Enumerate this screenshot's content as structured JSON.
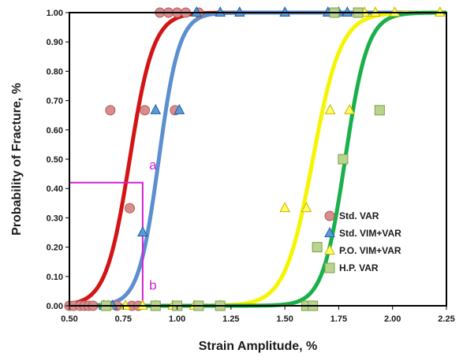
{
  "chart_data": {
    "type": "scatter",
    "xlabel": "Strain Amplitude, %",
    "ylabel": "Probability of Fracture, %",
    "xlim": [
      0.5,
      2.25
    ],
    "ylim": [
      0,
      1
    ],
    "x_ticks": [
      "0.50",
      "0.75",
      "1.00",
      "1.25",
      "1.50",
      "1.75",
      "2.00",
      "2.25"
    ],
    "y_ticks": [
      "0.00",
      "0.10",
      "0.20",
      "0.30",
      "0.40",
      "0.50",
      "0.60",
      "0.70",
      "0.80",
      "0.90",
      "1.00"
    ],
    "grid": false,
    "legend_position": "bottom-right",
    "series": [
      {
        "name": "Std. VAR",
        "marker": "circle",
        "color": "#d98c8c",
        "edge_color": "#b35a5a",
        "points": [
          [
            0.5,
            0
          ],
          [
            0.52,
            0
          ],
          [
            0.55,
            0
          ],
          [
            0.57,
            0
          ],
          [
            0.59,
            0
          ],
          [
            0.61,
            0
          ],
          [
            0.67,
            0
          ],
          [
            0.72,
            0
          ],
          [
            0.79,
            0
          ],
          [
            0.82,
            0
          ],
          [
            0.69,
            0.667
          ],
          [
            0.85,
            0.667
          ],
          [
            0.99,
            0.667
          ],
          [
            0.78,
            0.333
          ],
          [
            0.92,
            1
          ],
          [
            0.96,
            1
          ],
          [
            1.0,
            1
          ],
          [
            1.04,
            1
          ],
          [
            1.1,
            1
          ]
        ]
      },
      {
        "name": "Std. VIM+VAR",
        "marker": "triangle",
        "color": "#5b9bd5",
        "edge_color": "#1f5fa8",
        "points": [
          [
            0.66,
            0
          ],
          [
            0.7,
            0
          ],
          [
            0.84,
            0
          ],
          [
            0.84,
            0.25
          ],
          [
            0.9,
            0.667
          ],
          [
            1.01,
            0.667
          ],
          [
            1.09,
            1
          ],
          [
            1.2,
            1
          ],
          [
            1.29,
            1
          ],
          [
            1.5,
            1
          ],
          [
            1.7,
            1
          ],
          [
            1.75,
            1
          ],
          [
            1.79,
            1
          ]
        ]
      },
      {
        "name": "P.O. VIM+VAR",
        "marker": "triangle",
        "color": "#ffff66",
        "edge_color": "#c8b400",
        "points": [
          [
            0.68,
            0
          ],
          [
            0.76,
            0
          ],
          [
            0.84,
            0
          ],
          [
            0.9,
            0
          ],
          [
            0.98,
            0
          ],
          [
            1.08,
            0
          ],
          [
            1.2,
            0
          ],
          [
            1.5,
            0.333
          ],
          [
            1.6,
            0.333
          ],
          [
            1.71,
            0.667
          ],
          [
            1.8,
            0.667
          ],
          [
            1.87,
            1
          ],
          [
            1.92,
            1
          ],
          [
            2.01,
            1
          ],
          [
            2.22,
            1
          ]
        ]
      },
      {
        "name": "H.P. VAR",
        "marker": "square",
        "color": "#b9d48c",
        "edge_color": "#7a9e4a",
        "points": [
          [
            0.67,
            0
          ],
          [
            0.9,
            0
          ],
          [
            1.0,
            0
          ],
          [
            1.1,
            0
          ],
          [
            1.2,
            0
          ],
          [
            1.6,
            0
          ],
          [
            1.63,
            0
          ],
          [
            1.65,
            0.2
          ],
          [
            1.77,
            0.5
          ],
          [
            1.94,
            0.667
          ],
          [
            1.84,
            1
          ],
          [
            1.73,
            1
          ]
        ]
      }
    ],
    "curves": [
      {
        "series": "Std. VAR",
        "color": "#d41414",
        "mu": 0.78,
        "k": 0.055
      },
      {
        "series": "Std. VIM+VAR",
        "color": "#5b8fd0",
        "mu": 0.915,
        "k": 0.047
      },
      {
        "series": "P.O. VIM+VAR",
        "color": "#f5f500",
        "mu": 1.63,
        "k": 0.065
      },
      {
        "series": "H.P. VAR",
        "color": "#19b04a",
        "mu": 1.78,
        "k": 0.052
      }
    ],
    "guide": {
      "color": "#d21fd2",
      "x": 0.84,
      "y": 0.42
    },
    "annotations": [
      {
        "text": "a",
        "x": 0.87,
        "y": 0.465
      },
      {
        "text": "b",
        "x": 0.87,
        "y": 0.055
      }
    ]
  }
}
